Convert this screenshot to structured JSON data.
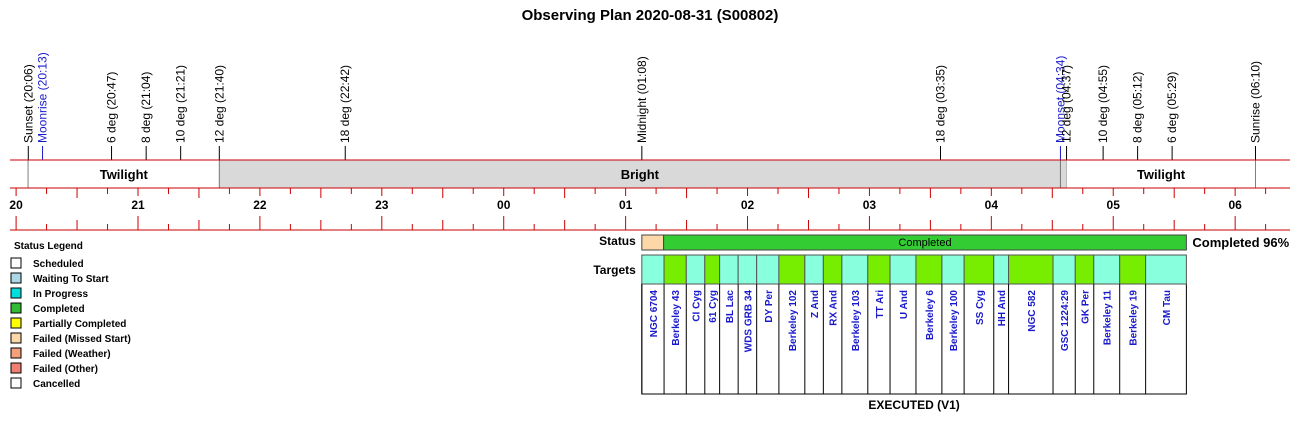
{
  "title": "Observing Plan 2020-08-31 (S00802)",
  "timeline": {
    "start_hour": 19.95,
    "end_hour": 30.45,
    "events": [
      {
        "label": "Sunset (20:06)",
        "hour": 20.1,
        "color": "#000000"
      },
      {
        "label": "Moonrise (20:13)",
        "hour": 20.217,
        "color": "#1a1acc"
      },
      {
        "label": "6 deg (20:47)",
        "hour": 20.783,
        "color": "#000000"
      },
      {
        "label": "8 deg (21:04)",
        "hour": 21.067,
        "color": "#000000"
      },
      {
        "label": "10 deg (21:21)",
        "hour": 21.35,
        "color": "#000000"
      },
      {
        "label": "12 deg (21:40)",
        "hour": 21.667,
        "color": "#000000"
      },
      {
        "label": "18 deg (22:42)",
        "hour": 22.7,
        "color": "#000000"
      },
      {
        "label": "Midnight (01:08)",
        "hour": 25.133,
        "color": "#000000"
      },
      {
        "label": "18 deg (03:35)",
        "hour": 27.583,
        "color": "#000000"
      },
      {
        "label": "Moonset (04:34)",
        "hour": 28.567,
        "color": "#1a1acc"
      },
      {
        "label": "12 deg (04:37)",
        "hour": 28.617,
        "color": "#000000"
      },
      {
        "label": "10 deg (04:55)",
        "hour": 28.917,
        "color": "#000000"
      },
      {
        "label": "8 deg (05:12)",
        "hour": 29.2,
        "color": "#000000"
      },
      {
        "label": "6 deg (05:29)",
        "hour": 29.483,
        "color": "#000000"
      },
      {
        "label": "Sunrise (06:10)",
        "hour": 30.167,
        "color": "#000000"
      }
    ],
    "phases": [
      {
        "label": "Twilight",
        "start": 20.1,
        "end": 21.667,
        "fill": "#ffffff"
      },
      {
        "label": "Bright",
        "start": 21.667,
        "end": 28.567,
        "fill": "#d9d9d9"
      },
      {
        "label": "",
        "start": 28.567,
        "end": 28.617,
        "fill": "#d9d9d9"
      },
      {
        "label": "Twilight",
        "start": 28.617,
        "end": 30.167,
        "fill": "#ffffff"
      }
    ],
    "hour_labels": [
      "20",
      "21",
      "22",
      "23",
      "00",
      "01",
      "02",
      "03",
      "04",
      "05",
      "06"
    ]
  },
  "status": {
    "label": "Status",
    "start": 25.133,
    "end": 29.6,
    "segments": [
      {
        "label": "",
        "fraction": 0.04,
        "fill": "#fcd8a8"
      },
      {
        "label": "Completed",
        "fraction": 0.96,
        "fill": "#33cc33"
      }
    ],
    "summary": "Completed 96%"
  },
  "targets": {
    "label": "Targets",
    "caption": "EXECUTED (V1)",
    "items": [
      {
        "name": "NGC 6704",
        "units": 3,
        "fill": "#88ffdd"
      },
      {
        "name": "Berkeley 43",
        "units": 3,
        "fill": "#77ee00"
      },
      {
        "name": "CI Cyg",
        "units": 2.5,
        "fill": "#88ffdd"
      },
      {
        "name": "61 Cyg",
        "units": 2,
        "fill": "#77ee00"
      },
      {
        "name": "BL Lac",
        "units": 2.5,
        "fill": "#88ffdd"
      },
      {
        "name": "WDS GRB 34",
        "units": 2.5,
        "fill": "#88ffdd"
      },
      {
        "name": "DY Per",
        "units": 3,
        "fill": "#88ffdd"
      },
      {
        "name": "Berkeley 102",
        "units": 3.5,
        "fill": "#77ee00"
      },
      {
        "name": "Z And",
        "units": 2.5,
        "fill": "#88ffdd"
      },
      {
        "name": "RX And",
        "units": 2.5,
        "fill": "#77ee00"
      },
      {
        "name": "Berkeley 103",
        "units": 3.5,
        "fill": "#88ffdd"
      },
      {
        "name": "TT Ari",
        "units": 3,
        "fill": "#77ee00"
      },
      {
        "name": "U And",
        "units": 3.5,
        "fill": "#88ffdd"
      },
      {
        "name": "Berkeley 6",
        "units": 3.5,
        "fill": "#77ee00"
      },
      {
        "name": "Berkeley 100",
        "units": 3,
        "fill": "#88ffdd"
      },
      {
        "name": "SS Cyg",
        "units": 4,
        "fill": "#77ee00"
      },
      {
        "name": "HH And",
        "units": 2,
        "fill": "#88ffdd"
      },
      {
        "name": "NGC 582",
        "units": 6,
        "fill": "#77ee00"
      },
      {
        "name": "GSC 1224:29",
        "units": 3,
        "fill": "#88ffdd"
      },
      {
        "name": "GK Per",
        "units": 2.5,
        "fill": "#77ee00"
      },
      {
        "name": "Berkeley 11",
        "units": 3.5,
        "fill": "#88ffdd"
      },
      {
        "name": "Berkeley 19",
        "units": 3.5,
        "fill": "#77ee00"
      },
      {
        "name": "CM Tau",
        "units": 5.5,
        "fill": "#88ffdd"
      }
    ]
  },
  "legend": {
    "title": "Status Legend",
    "items": [
      {
        "label": "Scheduled",
        "color": "#ffffff"
      },
      {
        "label": "Waiting To Start",
        "color": "#add8e6"
      },
      {
        "label": "In Progress",
        "color": "#00dddd"
      },
      {
        "label": "Completed",
        "color": "#33bb33"
      },
      {
        "label": "Partially Completed",
        "color": "#ffff00"
      },
      {
        "label": "Failed (Missed Start)",
        "color": "#fcd8a8"
      },
      {
        "label": "Failed (Weather)",
        "color": "#f4a07a"
      },
      {
        "label": "Failed (Other)",
        "color": "#f08070"
      },
      {
        "label": "Cancelled",
        "color": "#ffffff"
      }
    ]
  }
}
